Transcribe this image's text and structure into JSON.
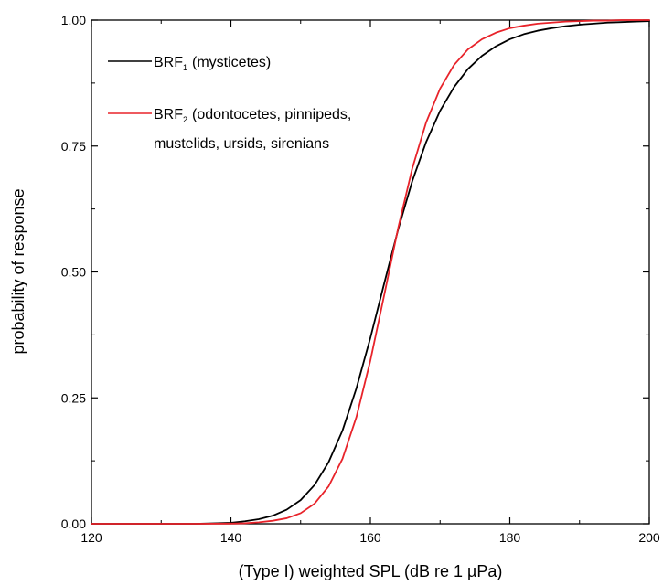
{
  "chart_data": {
    "type": "line",
    "xlabel": "(Type I) weighted SPL (dB re 1 µPa)",
    "ylabel": "probability of response",
    "xlim": [
      120,
      200
    ],
    "ylim": [
      0,
      1
    ],
    "x_ticks": [
      "120",
      "140",
      "160",
      "180",
      "200"
    ],
    "y_ticks": [
      "0.00",
      "0.25",
      "0.50",
      "0.75",
      "1.00"
    ],
    "grid": false,
    "legend_position": "top-left",
    "series": [
      {
        "name": "BRF",
        "name_sub": "1",
        "name_rest": "(mysticetes)",
        "color": "#000000",
        "x": [
          120,
          130,
          135,
          138,
          140,
          142,
          144,
          146,
          148,
          150,
          152,
          154,
          156,
          158,
          160,
          162,
          164,
          166,
          168,
          170,
          172,
          174,
          176,
          178,
          180,
          182,
          184,
          186,
          188,
          190,
          192,
          194,
          196,
          198,
          200
        ],
        "y": [
          0,
          0,
          0,
          0.001,
          0.002,
          0.005,
          0.009,
          0.016,
          0.028,
          0.047,
          0.077,
          0.122,
          0.185,
          0.269,
          0.369,
          0.478,
          0.585,
          0.68,
          0.758,
          0.82,
          0.867,
          0.903,
          0.929,
          0.948,
          0.962,
          0.972,
          0.979,
          0.984,
          0.988,
          0.991,
          0.993,
          0.995,
          0.996,
          0.997,
          0.998
        ]
      },
      {
        "name": "BRF",
        "name_sub": "2",
        "name_rest": "(odontocetes, pinnipeds,",
        "name_rest2": "mustelids, ursids, sirenians",
        "color": "#e8232a",
        "x": [
          120,
          130,
          135,
          140,
          142,
          144,
          146,
          148,
          150,
          152,
          154,
          156,
          158,
          160,
          162,
          164,
          166,
          168,
          170,
          172,
          174,
          176,
          178,
          180,
          182,
          184,
          186,
          188,
          190,
          192,
          194,
          196,
          198,
          200
        ],
        "y": [
          0,
          0,
          0,
          0.0003,
          0.001,
          0.003,
          0.006,
          0.011,
          0.021,
          0.04,
          0.074,
          0.129,
          0.212,
          0.324,
          0.455,
          0.588,
          0.705,
          0.797,
          0.864,
          0.911,
          0.942,
          0.962,
          0.975,
          0.984,
          0.989,
          0.993,
          0.995,
          0.997,
          0.998,
          0.999,
          0.999,
          1.0,
          1.0,
          1.0
        ]
      }
    ]
  }
}
